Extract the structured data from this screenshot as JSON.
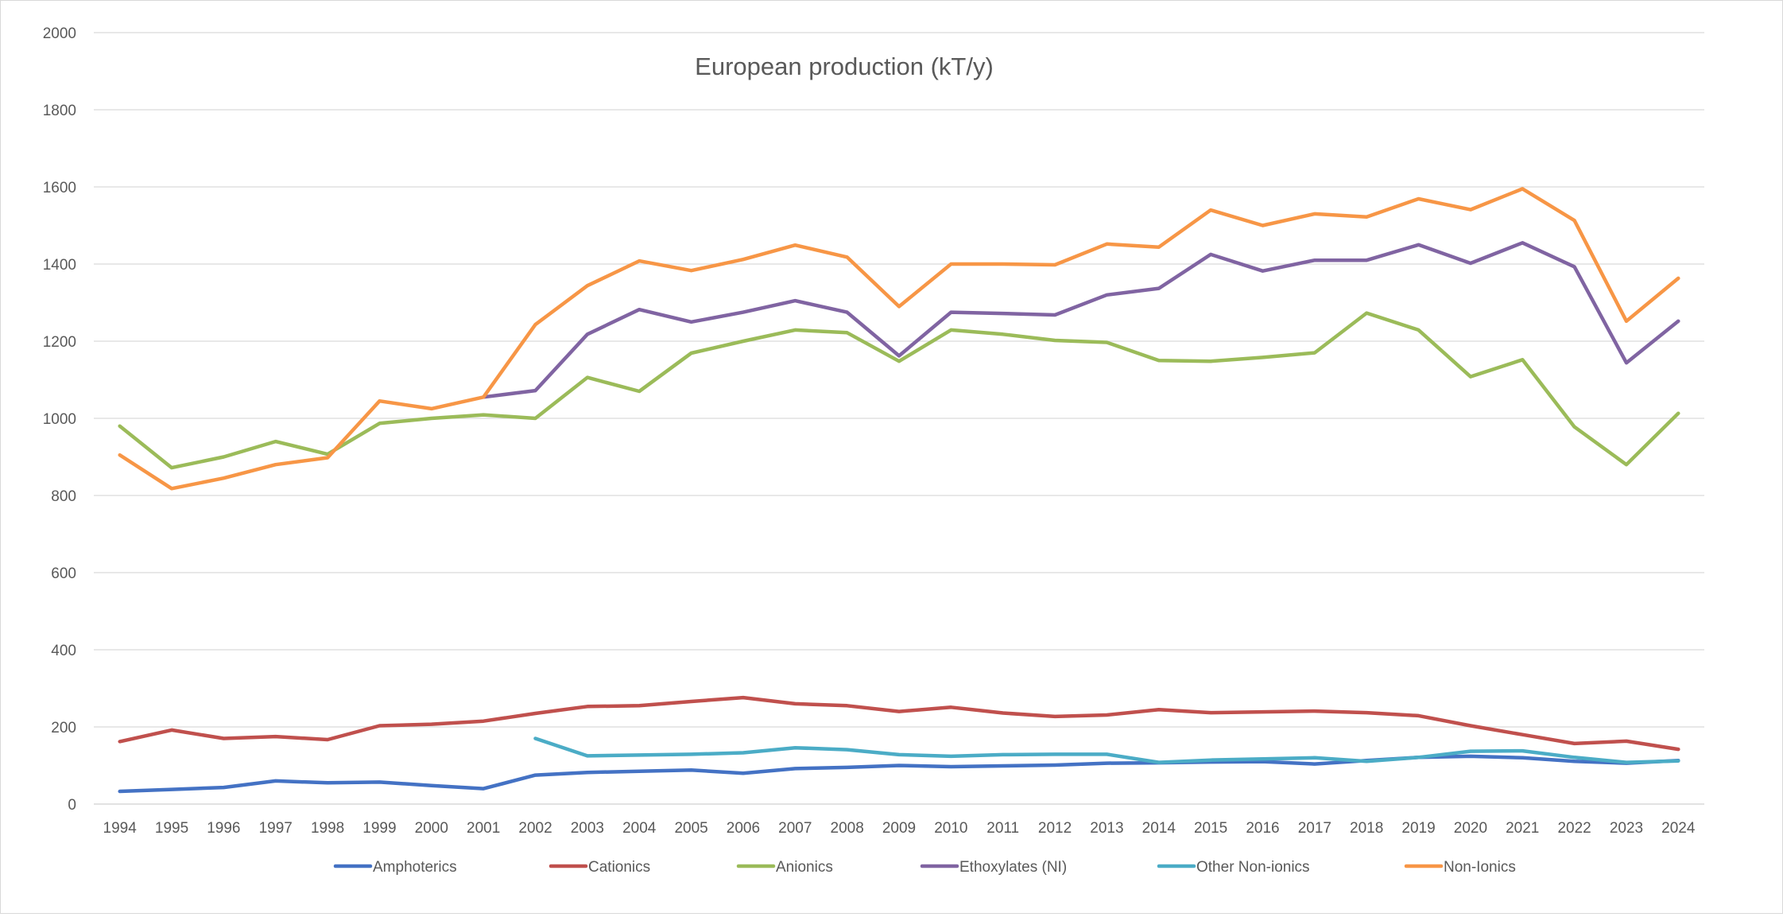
{
  "chart_data": {
    "type": "line",
    "title": "European production (kT/y)",
    "xlabel": "",
    "ylabel": "",
    "ylim": [
      0,
      2000
    ],
    "yticks": [
      0,
      200,
      400,
      600,
      800,
      1000,
      1200,
      1400,
      1600,
      1800,
      2000
    ],
    "grid": true,
    "legend_position": "bottom",
    "categories": [
      "1994",
      "1995",
      "1996",
      "1997",
      "1998",
      "1999",
      "2000",
      "2001",
      "2002",
      "2003",
      "2004",
      "2005",
      "2006",
      "2007",
      "2008",
      "2009",
      "2010",
      "2011",
      "2012",
      "2013",
      "2014",
      "2015",
      "2016",
      "2017",
      "2018",
      "2019",
      "2020",
      "2021",
      "2022",
      "2023",
      "2024"
    ],
    "series": [
      {
        "name": "Amphoterics",
        "color": "#4472c4",
        "values": [
          33,
          38,
          43,
          60,
          55,
          57,
          48,
          40,
          75,
          82,
          85,
          88,
          80,
          92,
          95,
          100,
          97,
          99,
          101,
          106,
          107,
          109,
          110,
          104,
          113,
          121,
          124,
          120,
          111,
          106,
          113
        ]
      },
      {
        "name": "Cationics",
        "color": "#c0504d",
        "values": [
          162,
          192,
          170,
          175,
          167,
          203,
          207,
          215,
          235,
          253,
          255,
          266,
          276,
          260,
          255,
          240,
          251,
          236,
          227,
          231,
          245,
          237,
          239,
          241,
          237,
          229,
          203,
          180,
          157,
          163,
          142
        ]
      },
      {
        "name": "Anionics",
        "color": "#9bbb59",
        "values": [
          980,
          872,
          900,
          940,
          907,
          987,
          1000,
          1009,
          1000,
          1106,
          1070,
          1169,
          1200,
          1229,
          1222,
          1148,
          1229,
          1218,
          1202,
          1197,
          1150,
          1148,
          1158,
          1170,
          1273,
          1229,
          1108,
          1152,
          978,
          880,
          1013
        ]
      },
      {
        "name": "Ethoxylates (NI)",
        "color": "#8064a2",
        "values": [
          null,
          null,
          null,
          null,
          null,
          null,
          null,
          1055,
          1072,
          1218,
          1282,
          1250,
          1275,
          1305,
          1275,
          1162,
          1275,
          1272,
          1268,
          1320,
          1337,
          1425,
          1382,
          1410,
          1410,
          1450,
          1402,
          1455,
          1393,
          1144,
          1252
        ]
      },
      {
        "name": "Other Non-ionics",
        "color": "#4bacc6",
        "values": [
          null,
          null,
          null,
          null,
          null,
          null,
          null,
          null,
          170,
          125,
          127,
          129,
          133,
          146,
          141,
          128,
          124,
          128,
          129,
          129,
          108,
          114,
          117,
          120,
          111,
          121,
          137,
          138,
          121,
          108,
          112
        ]
      },
      {
        "name": "Non-Ionics",
        "color": "#f79646",
        "values": [
          905,
          818,
          845,
          880,
          898,
          1045,
          1025,
          1055,
          1243,
          1344,
          1408,
          1383,
          1412,
          1449,
          1418,
          1290,
          1400,
          1400,
          1398,
          1452,
          1444,
          1540,
          1500,
          1530,
          1522,
          1569,
          1541,
          1595,
          1513,
          1252,
          1363
        ]
      }
    ]
  }
}
